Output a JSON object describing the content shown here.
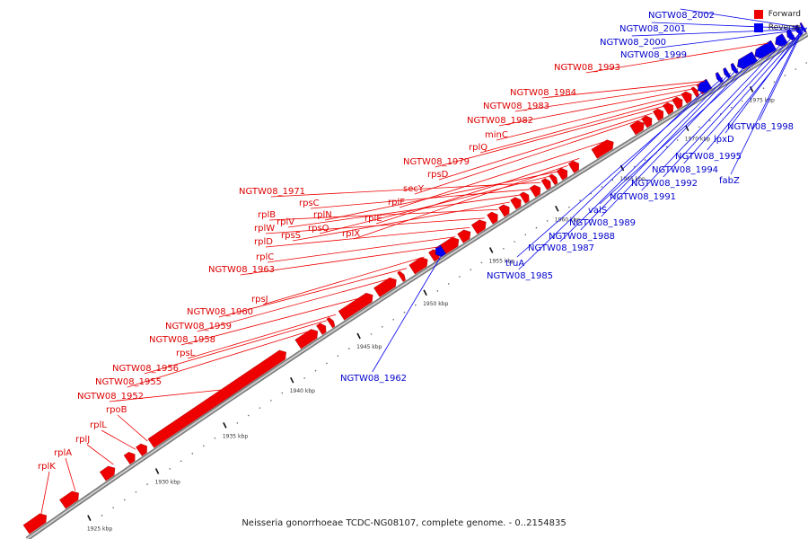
{
  "caption": "Neisseria gonorrhoeae TCDC-NG08107, complete genome. - 0..2154835",
  "legend": [
    {
      "label": "Forward",
      "color": "#ee0000"
    },
    {
      "label": "Reverse",
      "color": "#0000ee"
    }
  ],
  "colors": {
    "forward": "#ee0000",
    "reverse": "#0000ee",
    "track": "#aaaaaa"
  },
  "axis": {
    "unit": "kbp",
    "ticks": [
      {
        "label": "1925 kbp",
        "value": 1925
      },
      {
        "label": "1930 kbp",
        "value": 1930
      },
      {
        "label": "1935 kbp",
        "value": 1935
      },
      {
        "label": "1940 kbp",
        "value": 1940
      },
      {
        "label": "1945 kbp",
        "value": 1945
      },
      {
        "label": "1950 kbp",
        "value": 1950
      },
      {
        "label": "1955 kbp",
        "value": 1955
      },
      {
        "label": "1960 kbp",
        "value": 1960
      },
      {
        "label": "1965 kbp",
        "value": 1965
      },
      {
        "label": "1970 kbp",
        "value": 1970
      },
      {
        "label": "1975 kbp",
        "value": 1975
      }
    ]
  },
  "forward_genes": [
    "rplK",
    "rplA",
    "rplJ",
    "rplL",
    "rpoB",
    "NGTW08_1952",
    "NGTW08_1955",
    "NGTW08_1956",
    "rpsL",
    "NGTW08_1958",
    "NGTW08_1959",
    "NGTW08_1960",
    "rpsJ",
    "NGTW08_1963",
    "rplC",
    "rplD",
    "rplW",
    "rplB",
    "rpsS",
    "rplV",
    "rpsC",
    "NGTW08_1971",
    "rpsQ",
    "rplN",
    "rplX",
    "rplE",
    "rplF",
    "secY",
    "rpsD",
    "NGTW08_1979",
    "rplQ",
    "minC",
    "NGTW08_1982",
    "NGTW08_1983",
    "NGTW08_1984",
    "NGTW08_1993"
  ],
  "reverse_genes": [
    "NGTW08_1962",
    "NGTW08_1985",
    "truA",
    "NGTW08_1987",
    "NGTW08_1988",
    "NGTW08_1989",
    "valS",
    "NGTW08_1991",
    "NGTW08_1992",
    "NGTW08_1994",
    "NGTW08_1995",
    "fabZ",
    "lpxD",
    "NGTW08_1998",
    "NGTW08_1999",
    "NGTW08_2000",
    "NGTW08_2001",
    "NGTW08_2002"
  ]
}
